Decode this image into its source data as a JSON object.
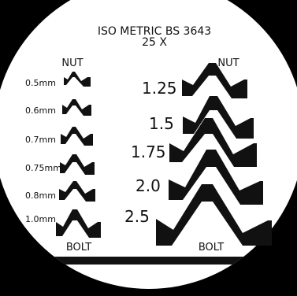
{
  "title": {
    "line1": "ISO METRIC BS  3643",
    "line2": "25 X"
  },
  "left_column": {
    "top_label": "NUT",
    "bottom_label": "BOLT",
    "pitches": [
      "0.5mm",
      "0.6mm",
      "0.7mm",
      "0.75mm",
      "0.8mm",
      "1.0mm"
    ]
  },
  "right_column": {
    "top_label": "NUT",
    "bottom_label": "BOLT",
    "pitches": [
      "1.25",
      "1.5",
      "1.75",
      "2.0",
      "2.5"
    ]
  },
  "colors": {
    "background": "#000000",
    "disc": "#ffffff",
    "ink": "#111111"
  }
}
